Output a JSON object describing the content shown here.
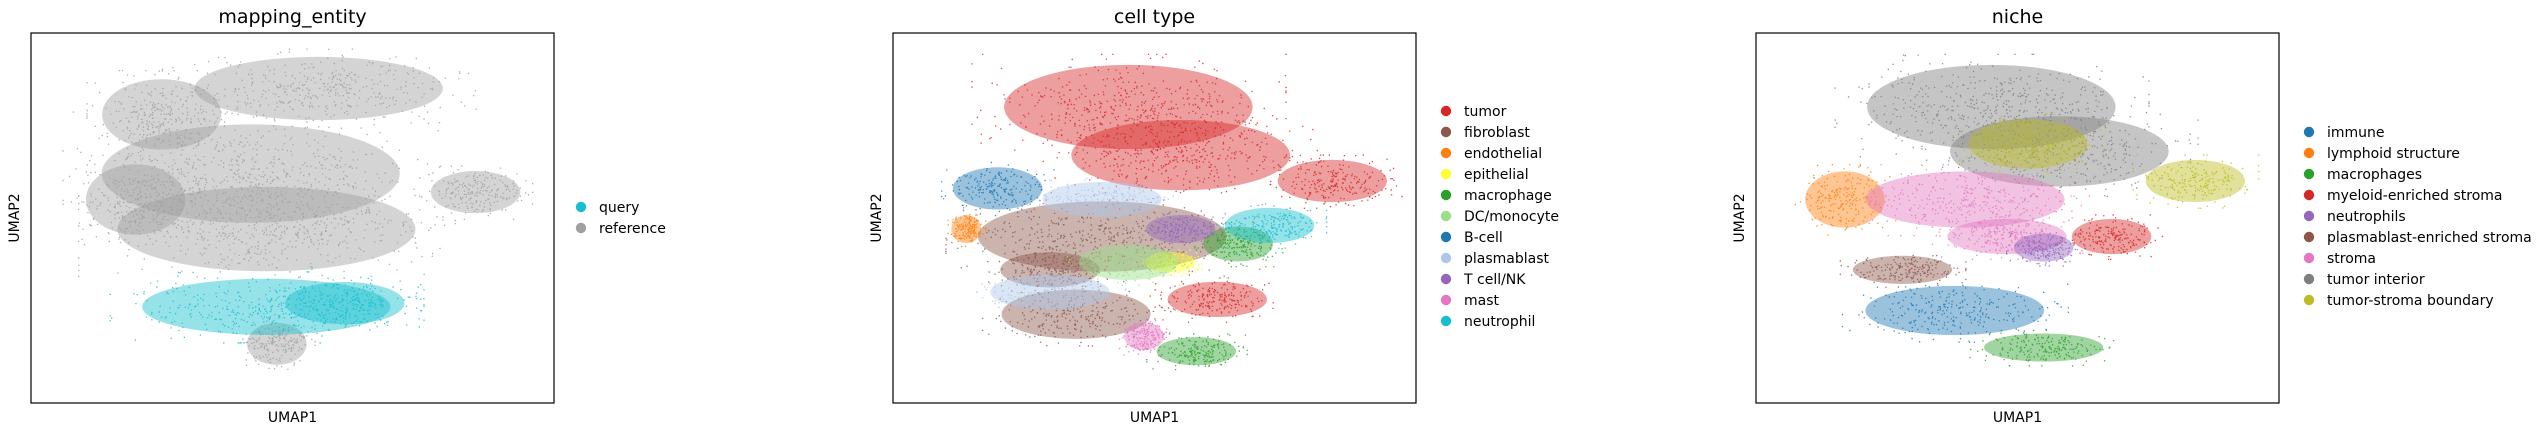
{
  "chart_data": [
    {
      "type": "scatter",
      "title": "mapping_entity",
      "xlabel": "UMAP1",
      "ylabel": "UMAP2",
      "grid": false,
      "legend_position": "right",
      "legend": [
        {
          "name": "query",
          "color": "#17becf"
        },
        {
          "name": "reference",
          "color": "#a0a0a0"
        }
      ],
      "regions": [
        {
          "group": "reference",
          "cx": 0.42,
          "cy": 0.62,
          "rx": 0.3,
          "ry": 0.14
        },
        {
          "group": "reference",
          "cx": 0.55,
          "cy": 0.85,
          "rx": 0.25,
          "ry": 0.09
        },
        {
          "group": "reference",
          "cx": 0.25,
          "cy": 0.78,
          "rx": 0.12,
          "ry": 0.1
        },
        {
          "group": "reference",
          "cx": 0.45,
          "cy": 0.47,
          "rx": 0.3,
          "ry": 0.12
        },
        {
          "group": "reference",
          "cx": 0.85,
          "cy": 0.57,
          "rx": 0.09,
          "ry": 0.06
        },
        {
          "group": "reference",
          "cx": 0.2,
          "cy": 0.55,
          "rx": 0.1,
          "ry": 0.1
        },
        {
          "group": "reference",
          "cx": 0.47,
          "cy": 0.16,
          "rx": 0.06,
          "ry": 0.06
        },
        {
          "group": "query",
          "cx": 0.45,
          "cy": 0.26,
          "rx": 0.25,
          "ry": 0.08
        },
        {
          "group": "query",
          "cx": 0.6,
          "cy": 0.27,
          "rx": 0.12,
          "ry": 0.06
        }
      ]
    },
    {
      "type": "scatter",
      "title": "cell type",
      "xlabel": "UMAP1",
      "ylabel": "UMAP2",
      "grid": false,
      "legend_position": "right",
      "legend": [
        {
          "name": "tumor",
          "color": "#d62728"
        },
        {
          "name": "fibroblast",
          "color": "#8c564b"
        },
        {
          "name": "endothelial",
          "color": "#ff7f0e"
        },
        {
          "name": "epithelial",
          "color": "#ffff33"
        },
        {
          "name": "macrophage",
          "color": "#2ca02c"
        },
        {
          "name": "DC/monocyte",
          "color": "#98df8a"
        },
        {
          "name": "B-cell",
          "color": "#1f77b4"
        },
        {
          "name": "plasmablast",
          "color": "#aec7e8"
        },
        {
          "name": "T cell/NK",
          "color": "#9467bd"
        },
        {
          "name": "mast",
          "color": "#e377c2"
        },
        {
          "name": "neutrophil",
          "color": "#17becf"
        }
      ],
      "regions": [
        {
          "group": "tumor",
          "cx": 0.45,
          "cy": 0.8,
          "rx": 0.25,
          "ry": 0.12
        },
        {
          "group": "tumor",
          "cx": 0.55,
          "cy": 0.67,
          "rx": 0.22,
          "ry": 0.1
        },
        {
          "group": "tumor",
          "cx": 0.84,
          "cy": 0.6,
          "rx": 0.11,
          "ry": 0.06
        },
        {
          "group": "tumor",
          "cx": 0.62,
          "cy": 0.28,
          "rx": 0.1,
          "ry": 0.05
        },
        {
          "group": "fibroblast",
          "cx": 0.4,
          "cy": 0.45,
          "rx": 0.25,
          "ry": 0.1
        },
        {
          "group": "fibroblast",
          "cx": 0.35,
          "cy": 0.24,
          "rx": 0.15,
          "ry": 0.07
        },
        {
          "group": "fibroblast",
          "cx": 0.3,
          "cy": 0.36,
          "rx": 0.1,
          "ry": 0.05
        },
        {
          "group": "endothelial",
          "cx": 0.14,
          "cy": 0.47,
          "rx": 0.03,
          "ry": 0.04
        },
        {
          "group": "epithelial",
          "cx": 0.53,
          "cy": 0.38,
          "rx": 0.05,
          "ry": 0.03
        },
        {
          "group": "macrophage",
          "cx": 0.66,
          "cy": 0.43,
          "rx": 0.07,
          "ry": 0.05
        },
        {
          "group": "macrophage",
          "cx": 0.58,
          "cy": 0.14,
          "rx": 0.08,
          "ry": 0.04
        },
        {
          "group": "DC/monocyte",
          "cx": 0.45,
          "cy": 0.38,
          "rx": 0.1,
          "ry": 0.05
        },
        {
          "group": "B-cell",
          "cx": 0.2,
          "cy": 0.58,
          "rx": 0.09,
          "ry": 0.06
        },
        {
          "group": "plasmablast",
          "cx": 0.3,
          "cy": 0.3,
          "rx": 0.12,
          "ry": 0.05
        },
        {
          "group": "plasmablast",
          "cx": 0.4,
          "cy": 0.55,
          "rx": 0.12,
          "ry": 0.05
        },
        {
          "group": "T cell/NK",
          "cx": 0.55,
          "cy": 0.47,
          "rx": 0.07,
          "ry": 0.04
        },
        {
          "group": "mast",
          "cx": 0.48,
          "cy": 0.18,
          "rx": 0.04,
          "ry": 0.04
        },
        {
          "group": "neutrophil",
          "cx": 0.72,
          "cy": 0.48,
          "rx": 0.09,
          "ry": 0.05
        }
      ]
    },
    {
      "type": "scatter",
      "title": "niche",
      "xlabel": "UMAP1",
      "ylabel": "UMAP2",
      "grid": false,
      "legend_position": "right",
      "legend": [
        {
          "name": "immune",
          "color": "#1f77b4"
        },
        {
          "name": "lymphoid structure",
          "color": "#ff7f0e"
        },
        {
          "name": "macrophages",
          "color": "#2ca02c"
        },
        {
          "name": "myeloid-enriched stroma",
          "color": "#d62728"
        },
        {
          "name": "neutrophils",
          "color": "#9467bd"
        },
        {
          "name": "plasmablast-enriched stroma",
          "color": "#8c564b"
        },
        {
          "name": "stroma",
          "color": "#e377c2"
        },
        {
          "name": "tumor interior",
          "color": "#7f7f7f"
        },
        {
          "name": "tumor-stroma boundary",
          "color": "#bcbd22"
        }
      ],
      "regions": [
        {
          "group": "tumor interior",
          "cx": 0.45,
          "cy": 0.8,
          "rx": 0.25,
          "ry": 0.12
        },
        {
          "group": "tumor interior",
          "cx": 0.58,
          "cy": 0.68,
          "rx": 0.22,
          "ry": 0.1
        },
        {
          "group": "tumor-stroma boundary",
          "cx": 0.84,
          "cy": 0.6,
          "rx": 0.1,
          "ry": 0.06
        },
        {
          "group": "tumor-stroma boundary",
          "cx": 0.52,
          "cy": 0.7,
          "rx": 0.12,
          "ry": 0.07
        },
        {
          "group": "lymphoid structure",
          "cx": 0.17,
          "cy": 0.55,
          "rx": 0.08,
          "ry": 0.08
        },
        {
          "group": "stroma",
          "cx": 0.4,
          "cy": 0.55,
          "rx": 0.2,
          "ry": 0.08
        },
        {
          "group": "stroma",
          "cx": 0.48,
          "cy": 0.45,
          "rx": 0.12,
          "ry": 0.05
        },
        {
          "group": "myeloid-enriched stroma",
          "cx": 0.68,
          "cy": 0.45,
          "rx": 0.08,
          "ry": 0.05
        },
        {
          "group": "neutrophils",
          "cx": 0.55,
          "cy": 0.42,
          "rx": 0.06,
          "ry": 0.04
        },
        {
          "group": "immune",
          "cx": 0.38,
          "cy": 0.25,
          "rx": 0.18,
          "ry": 0.07
        },
        {
          "group": "macrophages",
          "cx": 0.55,
          "cy": 0.15,
          "rx": 0.12,
          "ry": 0.04
        },
        {
          "group": "plasmablast-enriched stroma",
          "cx": 0.28,
          "cy": 0.36,
          "rx": 0.1,
          "ry": 0.04
        }
      ]
    }
  ]
}
